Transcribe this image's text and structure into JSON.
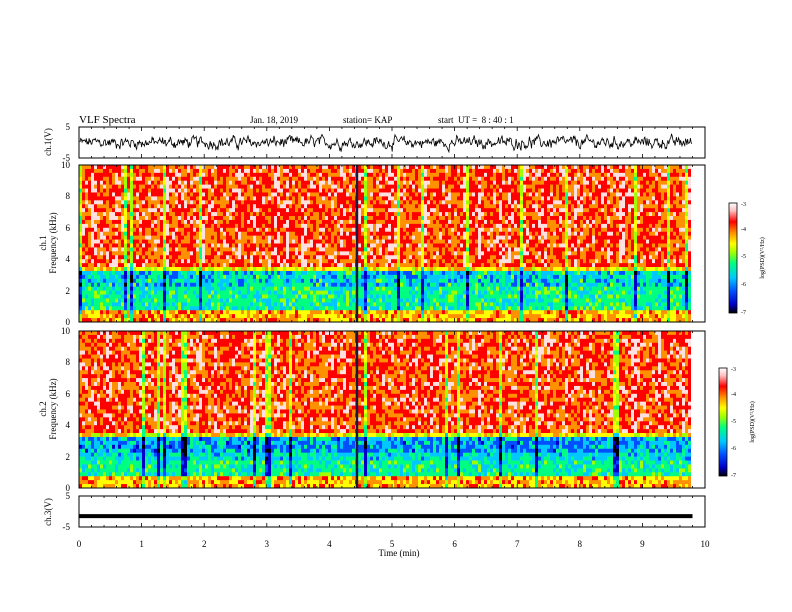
{
  "header": {
    "title": "VLF Spectra",
    "date": "Jan. 18, 2019",
    "station": "station= KAP",
    "start": "start  UT =  8 : 40 : 1"
  },
  "colors": {
    "line": "#000000",
    "colormap": [
      "#000000",
      "#0000c8",
      "#0050ff",
      "#00c8ff",
      "#00ff80",
      "#a0ff00",
      "#ffff00",
      "#ff9000",
      "#ff0000",
      "#ffe0e0",
      "#ffffff"
    ]
  },
  "chart_data": [
    {
      "type": "line",
      "panel": "ch1-waveform",
      "ylabel": "ch.1(V)",
      "ylim": [
        -5,
        5
      ],
      "yticklabels": [
        "5",
        "-5"
      ],
      "description_values": "noisy waveform, amplitude approx -3 to 3 V over 0–9.8 min"
    },
    {
      "type": "heatmap",
      "panel": "ch1-spectrogram",
      "ylabel_line1": "ch.1",
      "ylabel_line2": "Frequency (kHz)",
      "ylim": [
        0,
        10
      ],
      "yticklabels": [
        "0",
        "2",
        "4",
        "6",
        "8",
        "10"
      ],
      "colorbar": {
        "label": "log(PSD)(V²/Hz)",
        "range": [
          -7,
          -3
        ],
        "ticklabels": [
          "-3",
          "-4",
          "-5",
          "-6",
          "-7"
        ]
      }
    },
    {
      "type": "heatmap",
      "panel": "ch2-spectrogram",
      "ylabel_line1": "ch.2",
      "ylabel_line2": "Frequency (kHz)",
      "ylim": [
        0,
        10
      ],
      "yticklabels": [
        "0",
        "2",
        "4",
        "6",
        "8",
        "10"
      ],
      "colorbar": {
        "label": "log(PSD)(V²/Hz)",
        "range": [
          -7,
          -3
        ],
        "ticklabels": [
          "-3",
          "-4",
          "-5",
          "-6",
          "-7"
        ]
      }
    },
    {
      "type": "line",
      "panel": "ch3-waveform",
      "ylabel": "ch.3(V)",
      "ylim": [
        -5,
        5
      ],
      "yticklabels": [
        "5",
        "-5"
      ],
      "values_constant": -1.5
    }
  ],
  "xaxis": {
    "label": "Time (min)",
    "xlim": [
      0,
      10
    ],
    "ticklabels": [
      "0",
      "1",
      "2",
      "3",
      "4",
      "5",
      "6",
      "7",
      "8",
      "9",
      "10"
    ],
    "data_end": 9.8
  }
}
